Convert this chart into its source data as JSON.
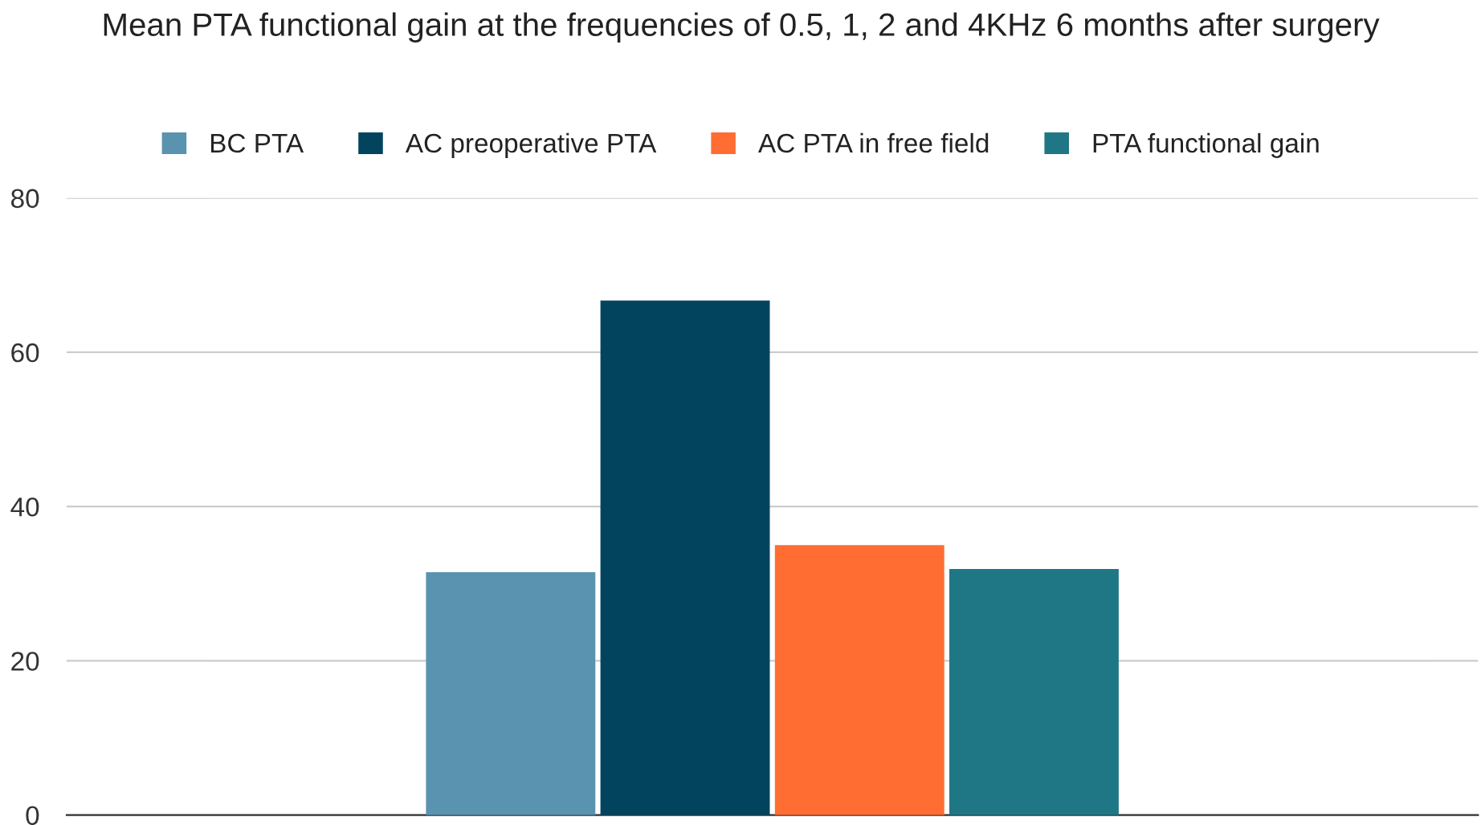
{
  "chart_data": {
    "type": "bar",
    "title": "Mean PTA functional gain at the frequencies of 0.5, 1, 2 and 4KHz 6 months after surgery",
    "categories": [
      null
    ],
    "series": [
      {
        "name": "BC PTA",
        "color": "#5a93b0",
        "values": [
          31.5
        ]
      },
      {
        "name": "AC preoperative PTA",
        "color": "#02445e",
        "values": [
          66.7
        ]
      },
      {
        "name": "AC PTA in free field",
        "color": "#ff6d33",
        "values": [
          35.0
        ]
      },
      {
        "name": "PTA functional gain",
        "color": "#1f7786",
        "values": [
          31.9
        ]
      }
    ],
    "ylim": [
      0,
      80
    ],
    "yticks": [
      0,
      20,
      40,
      60,
      80
    ],
    "grid": "y",
    "legend": "top"
  }
}
